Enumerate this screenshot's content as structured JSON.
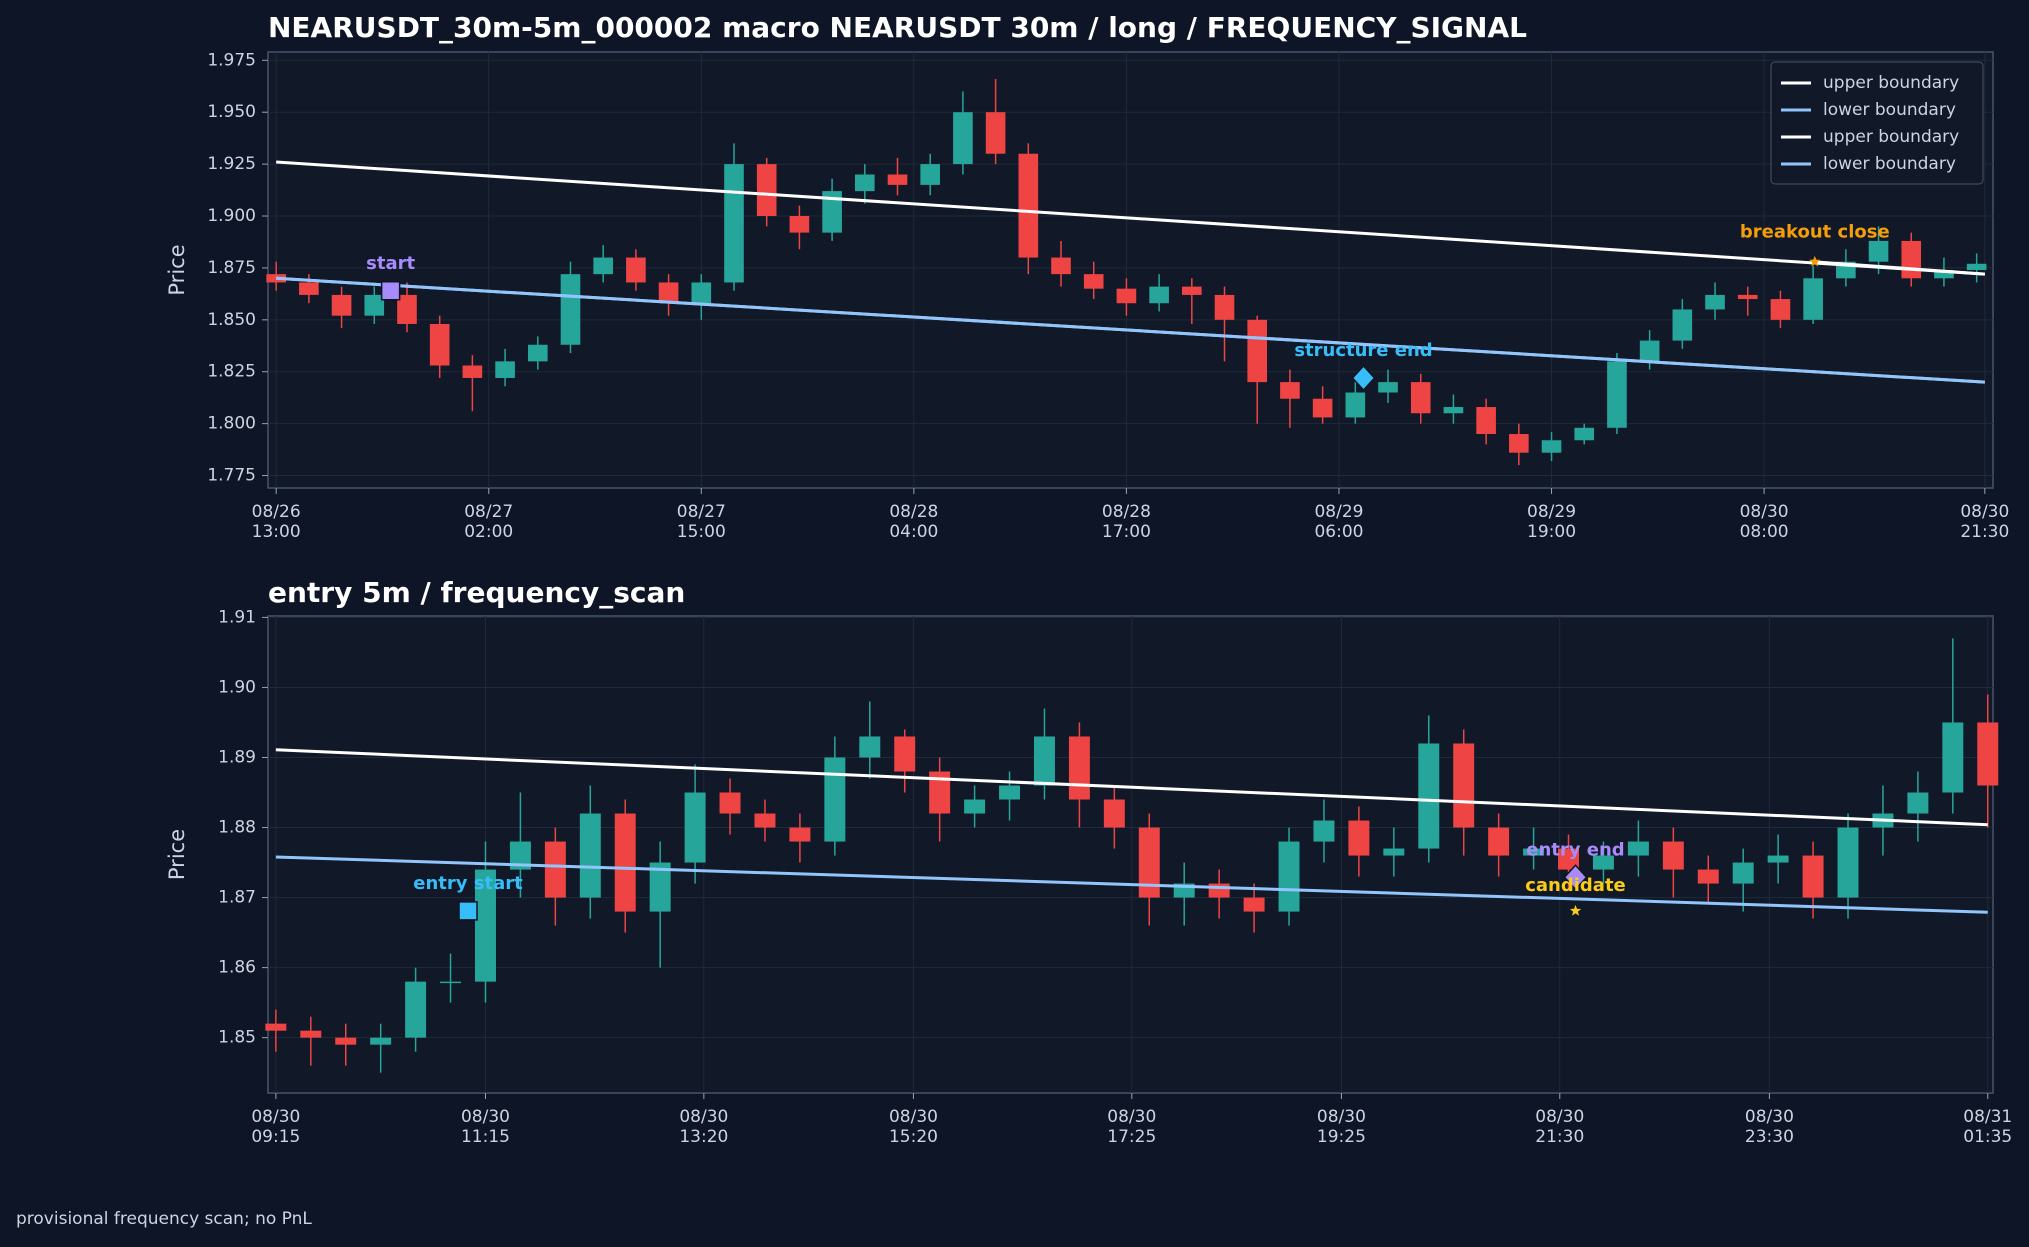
{
  "chart_data": [
    {
      "type": "candlestick",
      "title": "NEARUSDT_30m-5m_000002 macro NEARUSDT 30m / long / FREQUENCY_SIGNAL",
      "ylabel": "Price",
      "up_color": "#26a69a",
      "down_color": "#ef4444",
      "grid": true,
      "legend": "upper right",
      "xlim": [
        -0.5,
        105
      ],
      "ylim": [
        1.769,
        1.979
      ],
      "xticks": [
        {
          "value": 0,
          "label": "08/26\n13:00"
        },
        {
          "value": 13,
          "label": "08/27\n02:00"
        },
        {
          "value": 26,
          "label": "08/27\n15:00"
        },
        {
          "value": 39,
          "label": "08/28\n04:00"
        },
        {
          "value": 52,
          "label": "08/28\n17:00"
        },
        {
          "value": 65,
          "label": "08/29\n06:00"
        },
        {
          "value": 78,
          "label": "08/29\n19:00"
        },
        {
          "value": 91,
          "label": "08/30\n08:00"
        },
        {
          "value": 104.5,
          "label": "08/30\n21:30"
        }
      ],
      "yticks": [
        1.775,
        {
          "value": 1.8,
          "label": "1.800"
        },
        1.825,
        {
          "value": 1.85,
          "label": "1.850"
        },
        1.875,
        {
          "value": 1.9,
          "label": "1.900"
        },
        1.925,
        {
          "value": 1.95,
          "label": "1.950"
        },
        1.975
      ],
      "x": [
        0,
        2,
        4,
        6,
        8,
        10,
        12,
        14,
        16,
        18,
        20,
        22,
        24,
        26,
        28,
        30,
        32,
        34,
        36,
        38,
        40,
        42,
        44,
        46,
        48,
        50,
        52,
        54,
        56,
        58,
        60,
        62,
        64,
        66,
        68,
        70,
        72,
        74,
        76,
        78,
        80,
        82,
        84,
        86,
        88,
        90,
        92,
        94,
        96,
        98,
        100,
        102,
        104
      ],
      "open": [
        1.872,
        1.868,
        1.862,
        1.852,
        1.862,
        1.848,
        1.828,
        1.822,
        1.83,
        1.838,
        1.872,
        1.88,
        1.868,
        1.858,
        1.868,
        1.925,
        1.9,
        1.892,
        1.912,
        1.92,
        1.915,
        1.925,
        1.95,
        1.93,
        1.88,
        1.872,
        1.865,
        1.858,
        1.866,
        1.862,
        1.85,
        1.82,
        1.812,
        1.803,
        1.815,
        1.82,
        1.805,
        1.808,
        1.795,
        1.786,
        1.792,
        1.798,
        1.83,
        1.84,
        1.855,
        1.862,
        1.86,
        1.85,
        1.87,
        1.878,
        1.888,
        1.87,
        1.874
      ],
      "high": [
        1.878,
        1.872,
        1.866,
        1.866,
        1.868,
        1.852,
        1.833,
        1.836,
        1.842,
        1.878,
        1.886,
        1.884,
        1.872,
        1.872,
        1.935,
        1.928,
        1.905,
        1.918,
        1.925,
        1.928,
        1.93,
        1.96,
        1.966,
        1.935,
        1.888,
        1.878,
        1.87,
        1.872,
        1.87,
        1.866,
        1.852,
        1.826,
        1.818,
        1.82,
        1.826,
        1.824,
        1.814,
        1.812,
        1.8,
        1.796,
        1.8,
        1.834,
        1.845,
        1.86,
        1.868,
        1.866,
        1.864,
        1.876,
        1.884,
        1.895,
        1.892,
        1.88,
        1.882
      ],
      "low": [
        1.864,
        1.858,
        1.846,
        1.848,
        1.844,
        1.822,
        1.806,
        1.818,
        1.826,
        1.834,
        1.868,
        1.864,
        1.852,
        1.85,
        1.864,
        1.895,
        1.884,
        1.888,
        1.906,
        1.91,
        1.91,
        1.92,
        1.925,
        1.872,
        1.866,
        1.86,
        1.852,
        1.854,
        1.848,
        1.83,
        1.8,
        1.798,
        1.8,
        1.8,
        1.81,
        1.8,
        1.8,
        1.79,
        1.78,
        1.782,
        1.79,
        1.795,
        1.826,
        1.836,
        1.85,
        1.852,
        1.846,
        1.848,
        1.866,
        1.872,
        1.866,
        1.866,
        1.868
      ],
      "close": [
        1.868,
        1.862,
        1.852,
        1.862,
        1.848,
        1.828,
        1.822,
        1.83,
        1.838,
        1.872,
        1.88,
        1.868,
        1.858,
        1.868,
        1.925,
        1.9,
        1.892,
        1.912,
        1.92,
        1.915,
        1.925,
        1.95,
        1.93,
        1.88,
        1.872,
        1.865,
        1.858,
        1.866,
        1.862,
        1.85,
        1.82,
        1.812,
        1.803,
        1.815,
        1.82,
        1.805,
        1.808,
        1.795,
        1.786,
        1.792,
        1.798,
        1.83,
        1.84,
        1.855,
        1.862,
        1.86,
        1.85,
        1.87,
        1.878,
        1.888,
        1.87,
        1.874,
        1.877
      ],
      "series": [
        {
          "name": "upper boundary",
          "color": "#ffffff",
          "x": [
            0,
            104.5
          ],
          "values": [
            1.926,
            1.872
          ]
        },
        {
          "name": "lower boundary",
          "color": "#93c5fd",
          "x": [
            0,
            104.5
          ],
          "values": [
            1.87,
            1.82
          ]
        },
        {
          "name": "upper boundary",
          "color": "#ffffff",
          "x": [
            94,
            104.5
          ],
          "values": [
            1.878,
            1.872
          ]
        },
        {
          "name": "lower boundary",
          "color": "#93c5fd",
          "x": [
            0,
            104.5
          ],
          "values": [
            1.87,
            1.82
          ]
        }
      ],
      "markers": [
        {
          "label": "start",
          "shape": "square",
          "color": "#a78bfa",
          "x": 7,
          "y": 1.864
        },
        {
          "label": "structure end",
          "shape": "diamond",
          "color": "#38bdf8",
          "x": 66.5,
          "y": 1.822
        },
        {
          "label": "breakout close",
          "shape": "star",
          "color": "#f59e0b",
          "x": 94.1,
          "y": 1.878
        }
      ]
    },
    {
      "type": "candlestick",
      "title": "entry 5m / frequency_scan",
      "ylabel": "Price",
      "up_color": "#26a69a",
      "down_color": "#ef4444",
      "grid": true,
      "xlim": [
        -4.5,
        983
      ],
      "ylim": [
        1.8421,
        1.9102
      ],
      "xticks": [
        {
          "value": 0,
          "label": "08/30\n09:15"
        },
        {
          "value": 120,
          "label": "08/30\n11:15"
        },
        {
          "value": 245,
          "label": "08/30\n13:20"
        },
        {
          "value": 365,
          "label": "08/30\n15:20"
        },
        {
          "value": 490,
          "label": "08/30\n17:25"
        },
        {
          "value": 610,
          "label": "08/30\n19:25"
        },
        {
          "value": 735,
          "label": "08/30\n21:30"
        },
        {
          "value": 855,
          "label": "08/30\n23:30"
        },
        {
          "value": 980,
          "label": "08/31\n01:35"
        }
      ],
      "yticks": [
        1.85,
        1.86,
        1.87,
        1.88,
        1.89,
        {
          "value": 1.9,
          "label": "1.90"
        },
        1.91
      ],
      "x": [
        0,
        20,
        40,
        60,
        80,
        100,
        120,
        140,
        160,
        180,
        200,
        220,
        240,
        260,
        280,
        300,
        320,
        340,
        360,
        380,
        400,
        420,
        440,
        460,
        480,
        500,
        520,
        540,
        560,
        580,
        600,
        620,
        640,
        660,
        680,
        700,
        720,
        740,
        760,
        780,
        800,
        820,
        840,
        860,
        880,
        900,
        920,
        940,
        960,
        980
      ],
      "open": [
        1.852,
        1.851,
        1.85,
        1.849,
        1.85,
        1.858,
        1.858,
        1.874,
        1.878,
        1.87,
        1.882,
        1.868,
        1.875,
        1.885,
        1.882,
        1.88,
        1.878,
        1.89,
        1.893,
        1.888,
        1.882,
        1.884,
        1.886,
        1.893,
        1.884,
        1.88,
        1.87,
        1.872,
        1.87,
        1.868,
        1.878,
        1.881,
        1.876,
        1.877,
        1.892,
        1.88,
        1.876,
        1.877,
        1.874,
        1.876,
        1.878,
        1.874,
        1.872,
        1.875,
        1.876,
        1.87,
        1.88,
        1.882,
        1.885,
        1.895
      ],
      "high": [
        1.854,
        1.853,
        1.852,
        1.852,
        1.86,
        1.862,
        1.878,
        1.885,
        1.88,
        1.886,
        1.884,
        1.878,
        1.889,
        1.887,
        1.884,
        1.882,
        1.893,
        1.898,
        1.894,
        1.89,
        1.886,
        1.888,
        1.897,
        1.895,
        1.886,
        1.882,
        1.875,
        1.874,
        1.872,
        1.88,
        1.884,
        1.883,
        1.88,
        1.896,
        1.894,
        1.882,
        1.88,
        1.879,
        1.878,
        1.881,
        1.88,
        1.876,
        1.877,
        1.879,
        1.878,
        1.882,
        1.886,
        1.888,
        1.907,
        1.899
      ],
      "low": [
        1.848,
        1.846,
        1.846,
        1.845,
        1.848,
        1.855,
        1.855,
        1.87,
        1.866,
        1.867,
        1.865,
        1.86,
        1.872,
        1.879,
        1.878,
        1.875,
        1.876,
        1.887,
        1.885,
        1.878,
        1.88,
        1.881,
        1.884,
        1.88,
        1.877,
        1.866,
        1.866,
        1.867,
        1.865,
        1.866,
        1.875,
        1.873,
        1.873,
        1.875,
        1.876,
        1.873,
        1.874,
        1.871,
        1.872,
        1.873,
        1.87,
        1.869,
        1.868,
        1.872,
        1.867,
        1.867,
        1.876,
        1.878,
        1.882,
        1.88
      ],
      "close": [
        1.851,
        1.85,
        1.849,
        1.85,
        1.858,
        1.858,
        1.874,
        1.878,
        1.87,
        1.882,
        1.868,
        1.875,
        1.885,
        1.882,
        1.88,
        1.878,
        1.89,
        1.893,
        1.888,
        1.882,
        1.884,
        1.886,
        1.893,
        1.884,
        1.88,
        1.87,
        1.872,
        1.87,
        1.868,
        1.878,
        1.881,
        1.876,
        1.877,
        1.892,
        1.88,
        1.876,
        1.877,
        1.874,
        1.876,
        1.878,
        1.874,
        1.872,
        1.875,
        1.876,
        1.87,
        1.88,
        1.882,
        1.885,
        1.895,
        1.886
      ],
      "series": [
        {
          "name": "upper boundary",
          "color": "#ffffff",
          "x": [
            0,
            980
          ],
          "values": [
            1.8911,
            1.8804
          ]
        },
        {
          "name": "lower boundary",
          "color": "#93c5fd",
          "x": [
            0,
            980
          ],
          "values": [
            1.8758,
            1.8679
          ]
        }
      ],
      "markers": [
        {
          "label": "entry start",
          "shape": "square",
          "color": "#38bdf8",
          "x": 110,
          "y": 1.8681
        },
        {
          "label": "entry end",
          "shape": "diamond",
          "color": "#a78bfa",
          "x": 744,
          "y": 1.8729
        },
        {
          "label": "candidate",
          "shape": "star",
          "color": "#facc15",
          "x": 744,
          "y": 1.8681
        }
      ]
    }
  ],
  "footer": "provisional frequency scan; no PnL"
}
